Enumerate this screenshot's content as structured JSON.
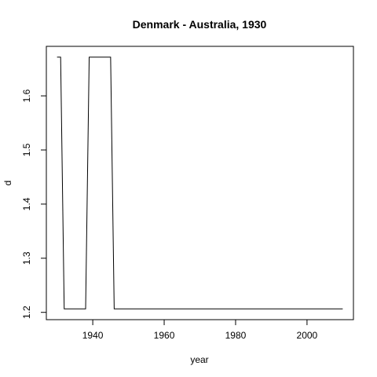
{
  "chart_data": {
    "type": "line",
    "title": "Denmark - Australia, 1930",
    "xlabel": "year",
    "ylabel": "d",
    "xlim": [
      1927,
      2013
    ],
    "ylim": [
      1.1865,
      1.6915
    ],
    "x_ticks": [
      1940,
      1960,
      1980,
      2000
    ],
    "y_ticks": [
      1.2,
      1.3,
      1.4,
      1.5,
      1.6
    ],
    "grid": false,
    "legend": "none",
    "series": [
      {
        "color": "#000000",
        "points": [
          [
            1930,
            1.6715
          ],
          [
            1931,
            1.6715
          ],
          [
            1932,
            1.2065
          ],
          [
            1938,
            1.2065
          ],
          [
            1939,
            1.6715
          ],
          [
            1945,
            1.6715
          ],
          [
            1946,
            1.2065
          ],
          [
            2010,
            1.2065
          ]
        ]
      }
    ]
  }
}
